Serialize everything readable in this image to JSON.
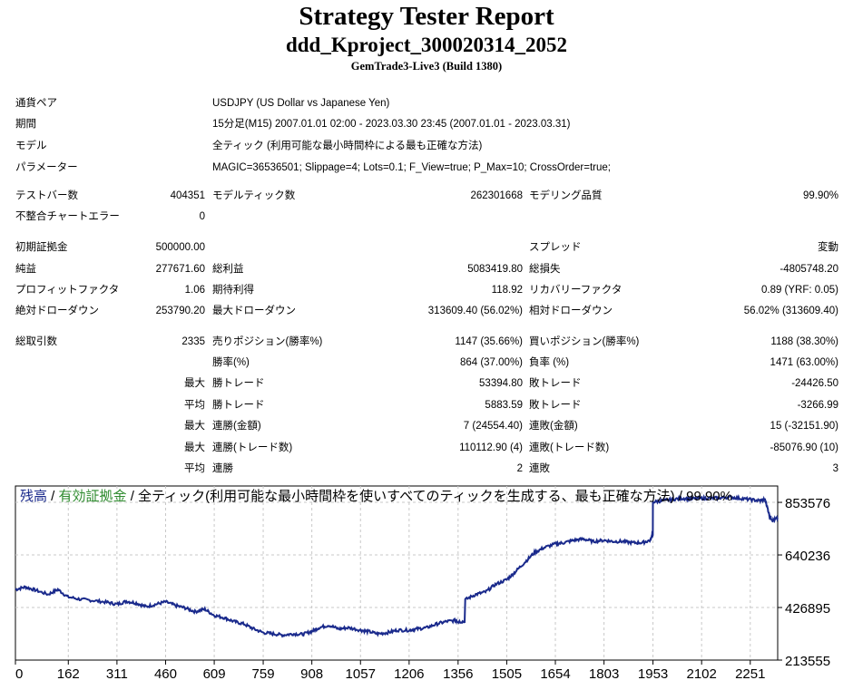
{
  "header": {
    "title": "Strategy Tester Report",
    "subtitle": "ddd_Kproject_300020314_2052",
    "server": "GemTrade3-Live3 (Build 1380)"
  },
  "info": {
    "symbol_label": "通貨ペア",
    "symbol_value": "USDJPY (US Dollar vs Japanese Yen)",
    "period_label": "期間",
    "period_value": "15分足(M15) 2007.01.01 02:00 - 2023.03.30 23:45 (2007.01.01 - 2023.03.31)",
    "model_label": "モデル",
    "model_value": "全ティック (利用可能な最小時間枠による最も正確な方法)",
    "params_label": "パラメーター",
    "params_value": "MAGIC=36536501; Slippage=4; Lots=0.1; F_View=true; P_Max=10; CrossOrder=true;"
  },
  "stats": {
    "bars_label": "テストバー数",
    "bars_value": "404351",
    "ticks_label": "モデルティック数",
    "ticks_value": "262301668",
    "quality_label": "モデリング品質",
    "quality_value": "99.90%",
    "mismatch_label": "不整合チャートエラー",
    "mismatch_value": "0",
    "deposit_label": "初期証拠金",
    "deposit_value": "500000.00",
    "spread_label": "スプレッド",
    "spread_value": "変動",
    "net_label": "純益",
    "net_value": "277671.60",
    "gross_profit_label": "総利益",
    "gross_profit_value": "5083419.80",
    "gross_loss_label": "総損失",
    "gross_loss_value": "-4805748.20",
    "pf_label": "プロフィットファクタ",
    "pf_value": "1.06",
    "expected_label": "期待利得",
    "expected_value": "118.92",
    "recovery_label": "リカバリーファクタ",
    "recovery_value": "0.89 (YRF: 0.05)",
    "abs_dd_label": "絶対ドローダウン",
    "abs_dd_value": "253790.20",
    "max_dd_label": "最大ドローダウン",
    "max_dd_value": "313609.40 (56.02%)",
    "rel_dd_label": "相対ドローダウン",
    "rel_dd_value": "56.02% (313609.40)",
    "total_trades_label": "総取引数",
    "total_trades_value": "2335",
    "short_label": "売りポジション(勝率%)",
    "short_value": "1147 (35.66%)",
    "long_label": "買いポジション(勝率%)",
    "long_value": "1188 (38.30%)",
    "win_pct_label": "勝率(%)",
    "win_pct_value": "864 (37.00%)",
    "loss_pct_label": "負率 (%)",
    "loss_pct_value": "1471 (63.00%)",
    "largest_prefix": "最大",
    "largest_win_label": "勝トレード",
    "largest_win_value": "53394.80",
    "largest_loss_label": "敗トレード",
    "largest_loss_value": "-24426.50",
    "average_prefix": "平均",
    "avg_win_label": "勝トレード",
    "avg_win_value": "5883.59",
    "avg_loss_label": "敗トレード",
    "avg_loss_value": "-3266.99",
    "max_cons_prefix": "最大",
    "max_cons_win_label": "連勝(金額)",
    "max_cons_win_value": "7 (24554.40)",
    "max_cons_loss_label": "連敗(金額)",
    "max_cons_loss_value": "15 (-32151.90)",
    "max_cons2_prefix": "最大",
    "max_cons_profit_label": "連勝(トレード数)",
    "max_cons_profit_value": "110112.90 (4)",
    "max_cons_lossamt_label": "連敗(トレード数)",
    "max_cons_lossamt_value": "-85076.90 (10)",
    "avg_cons_prefix": "平均",
    "avg_cons_win_label": "連勝",
    "avg_cons_win_value": "2",
    "avg_cons_loss_label": "連敗",
    "avg_cons_loss_value": "3"
  },
  "chart_data": {
    "type": "line",
    "legend": {
      "balance": "残高",
      "sep1": " / ",
      "equity": "有効証拠金",
      "rest": " / 全ティック(利用可能な最小時間枠を使いすべてのティックを生成する、最も正確な方法) / 99.90%"
    },
    "x_ticks": [
      0,
      162,
      311,
      460,
      609,
      759,
      908,
      1057,
      1206,
      1356,
      1505,
      1654,
      1803,
      1953,
      2102,
      2251
    ],
    "y_ticks": [
      213555,
      426895,
      640236,
      853576
    ],
    "xlim": [
      0,
      2335
    ],
    "ylim": [
      213555,
      920000
    ],
    "colors": {
      "balance": "#1a2a8c",
      "equity": "#2e8b2e",
      "grid": "#c8c8c8"
    },
    "series": [
      {
        "x": [
          0,
          30,
          60,
          100,
          130,
          160,
          200,
          240,
          280,
          311,
          340,
          370,
          400,
          430,
          460,
          490,
          520,
          550,
          580,
          609,
          640,
          670,
          700,
          730,
          759,
          790,
          820,
          850,
          880,
          908,
          930,
          960,
          990,
          1020,
          1057,
          1080,
          1110,
          1140,
          1170,
          1206,
          1230,
          1260,
          1290,
          1320,
          1350,
          1356,
          1380,
          1410,
          1440,
          1470,
          1505,
          1530,
          1560,
          1590,
          1620,
          1654,
          1680,
          1710,
          1740,
          1770,
          1803,
          1830,
          1860,
          1890,
          1920,
          1945,
          1950,
          1953,
          1980,
          2010,
          2040,
          2070,
          2102,
          2130,
          2160,
          2190,
          2220,
          2251,
          2280,
          2295,
          2300,
          2310,
          2320,
          2335
        ],
        "y": [
          500000,
          510000,
          498000,
          480000,
          500000,
          470000,
          460000,
          455000,
          448000,
          440000,
          452000,
          445000,
          430000,
          440000,
          450000,
          435000,
          425000,
          410000,
          420000,
          395000,
          385000,
          370000,
          360000,
          340000,
          325000,
          320000,
          315000,
          320000,
          318000,
          330000,
          345000,
          355000,
          340000,
          345000,
          335000,
          330000,
          320000,
          325000,
          335000,
          335000,
          340000,
          345000,
          360000,
          370000,
          375000,
          370000,
          460000,
          480000,
          490000,
          520000,
          540000,
          570000,
          610000,
          650000,
          670000,
          685000,
          690000,
          700000,
          705000,
          695000,
          700000,
          695000,
          695000,
          690000,
          690000,
          700000,
          720000,
          855000,
          860000,
          865000,
          870000,
          868000,
          870000,
          870000,
          872000,
          875000,
          870000,
          865000,
          860000,
          865000,
          850000,
          800000,
          780000,
          790000
        ]
      }
    ]
  }
}
